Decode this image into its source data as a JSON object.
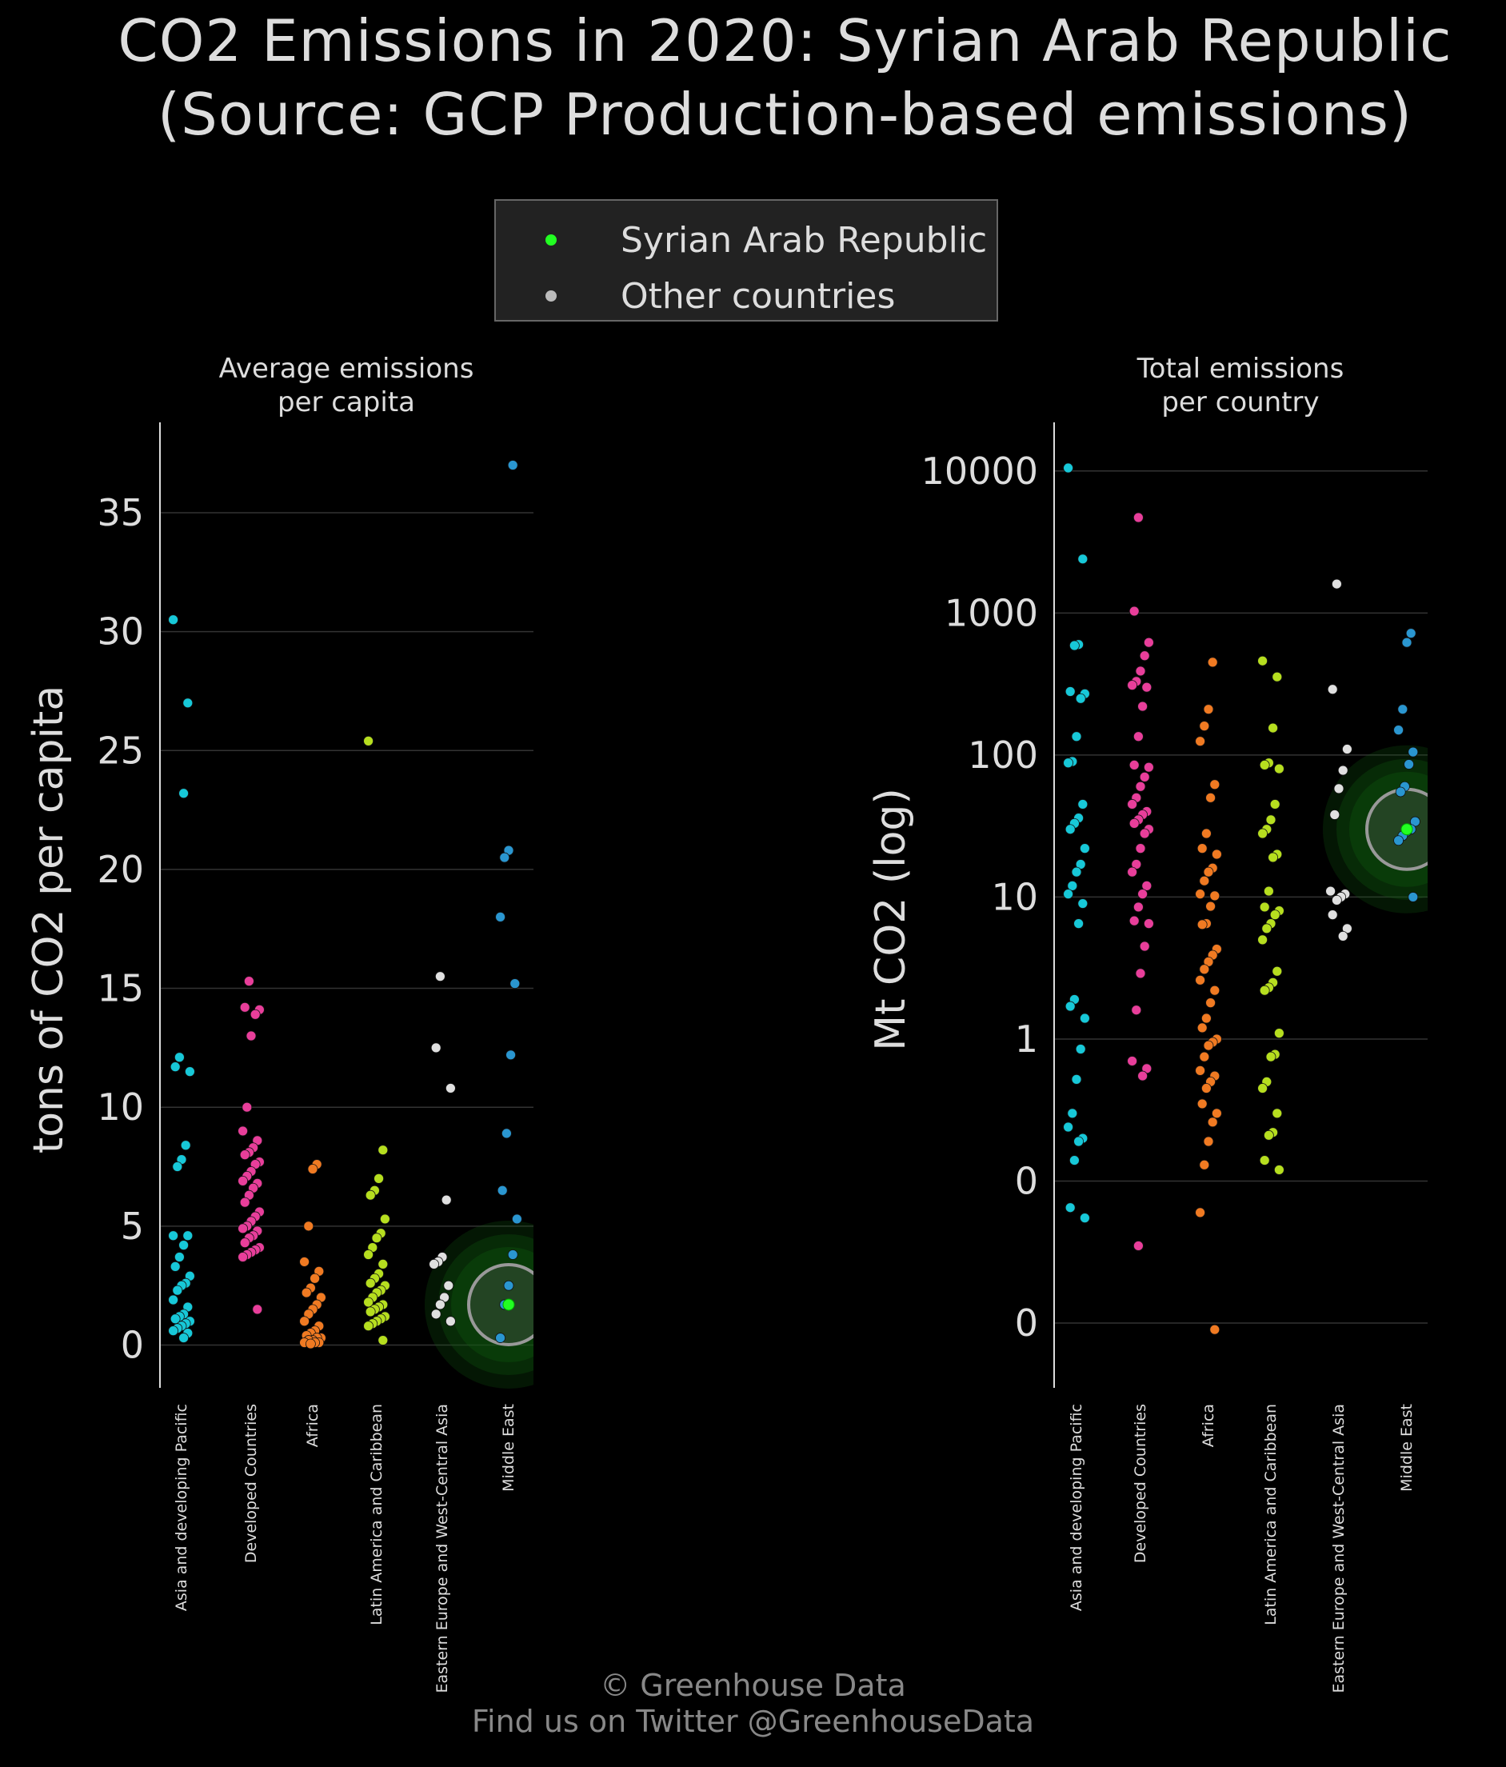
{
  "title_line1": "CO2 Emissions in 2020: Syrian Arab Republic",
  "title_line2": "(Source: GCP Production-based emissions)",
  "legend": [
    {
      "label": "Syrian Arab Republic",
      "color": "#22ff22"
    },
    {
      "label": "Other countries",
      "color": "#bbbbbb"
    }
  ],
  "footer": {
    "line1": "© Greenhouse Data",
    "line2": "Find us on Twitter @GreenhouseData"
  },
  "colors": {
    "Asia and developing Pacific": "#17c8d8",
    "Developed Countries": "#e83e9a",
    "Africa": "#f07a22",
    "Latin America and Caribbean": "#b6de1f",
    "Eastern Europe and West-Central Asia": "#e0e0e0",
    "Middle East": "#2a96d0",
    "highlight": "#22ff22"
  },
  "chart_data": [
    {
      "type": "scatter",
      "subtitle_line1": "Average emissions",
      "subtitle_line2": "per capita",
      "ylabel": "tons of CO2 per capita",
      "ylim": [
        -1.8,
        38.8
      ],
      "yticks": [
        0,
        5,
        10,
        15,
        20,
        25,
        30,
        35
      ],
      "ytick_labels": [
        "0",
        "5",
        "10",
        "15",
        "20",
        "25",
        "30",
        "35"
      ],
      "grid": true,
      "categories": [
        "Asia and developing Pacific",
        "Developed Countries",
        "Africa",
        "Latin America and Caribbean",
        "Eastern Europe and West-Central Asia",
        "Middle East"
      ],
      "highlight": {
        "category": "Middle East",
        "value": 1.7,
        "label": "Syrian Arab Republic"
      },
      "series": [
        {
          "name": "Asia and developing Pacific",
          "values": [
            30.5,
            27.0,
            23.2,
            12.1,
            11.7,
            11.5,
            8.4,
            7.8,
            7.5,
            4.6,
            4.6,
            4.2,
            3.7,
            3.3,
            2.9,
            2.6,
            2.5,
            2.3,
            1.9,
            1.6,
            1.3,
            1.2,
            1.1,
            1.0,
            0.9,
            0.8,
            0.7,
            0.6,
            0.5,
            0.3
          ]
        },
        {
          "name": "Developed Countries",
          "values": [
            15.3,
            14.2,
            14.1,
            13.9,
            13.0,
            10.0,
            9.0,
            8.6,
            8.3,
            8.1,
            8.0,
            7.7,
            7.6,
            7.3,
            7.1,
            6.9,
            6.8,
            6.6,
            6.3,
            6.0,
            5.6,
            5.4,
            5.2,
            5.0,
            4.9,
            4.8,
            4.6,
            4.5,
            4.3,
            4.1,
            4.0,
            3.9,
            3.8,
            3.7,
            1.5
          ]
        },
        {
          "name": "Africa",
          "values": [
            7.6,
            7.4,
            5.0,
            3.5,
            3.1,
            2.8,
            2.4,
            2.2,
            2.0,
            1.7,
            1.5,
            1.3,
            1.0,
            0.8,
            0.6,
            0.5,
            0.4,
            0.3,
            0.3,
            0.2,
            0.2,
            0.1,
            0.1,
            0.1,
            0.05
          ]
        },
        {
          "name": "Latin America and Caribbean",
          "values": [
            25.4,
            8.2,
            7.0,
            6.5,
            6.3,
            5.3,
            4.7,
            4.5,
            4.1,
            3.8,
            3.4,
            3.0,
            2.8,
            2.6,
            2.5,
            2.3,
            2.2,
            2.0,
            1.8,
            1.7,
            1.6,
            1.5,
            1.4,
            1.2,
            1.1,
            1.0,
            0.9,
            0.8,
            0.2
          ]
        },
        {
          "name": "Eastern Europe and West-Central Asia",
          "values": [
            15.5,
            12.5,
            10.8,
            6.1,
            3.7,
            3.5,
            3.4,
            2.5,
            2.0,
            1.7,
            1.3,
            1.0
          ]
        },
        {
          "name": "Middle East",
          "values": [
            37.0,
            20.8,
            20.5,
            18.0,
            15.2,
            12.2,
            8.9,
            6.5,
            5.3,
            3.8,
            2.5,
            1.7,
            0.3
          ]
        }
      ]
    },
    {
      "type": "scatter",
      "subtitle_line1": "Total emissions",
      "subtitle_line2": "per country",
      "ylabel": "Mt CO2 (log)",
      "yscale": "log",
      "ylim": [
        0.0035,
        22000
      ],
      "yticks": [
        0.01,
        0.1,
        1,
        10,
        100,
        1000,
        10000
      ],
      "ytick_labels": [
        "0",
        "0",
        "1",
        "10",
        "100",
        "1000",
        "10000"
      ],
      "grid": true,
      "categories": [
        "Asia and developing Pacific",
        "Developed Countries",
        "Africa",
        "Latin America and Caribbean",
        "Eastern Europe and West-Central Asia",
        "Middle East"
      ],
      "highlight": {
        "category": "Middle East",
        "value": 30,
        "label": "Syrian Arab Republic"
      },
      "series": [
        {
          "name": "Asia and developing Pacific",
          "values": [
            10500,
            2400,
            600,
            590,
            280,
            270,
            250,
            135,
            90,
            88,
            45,
            36,
            33,
            30,
            22,
            17,
            15,
            12,
            10.5,
            9,
            6.5,
            1.9,
            1.7,
            1.4,
            0.85,
            0.52,
            0.3,
            0.24,
            0.2,
            0.19,
            0.14,
            0.065,
            0.055
          ]
        },
        {
          "name": "Developed Countries",
          "values": [
            4700,
            1030,
            620,
            500,
            390,
            330,
            310,
            300,
            220,
            135,
            85,
            82,
            70,
            60,
            50,
            45,
            40,
            38,
            35,
            33,
            30,
            28,
            22,
            17,
            15,
            12,
            10.5,
            8.5,
            6.8,
            6.5,
            4.5,
            2.9,
            1.6,
            0.7,
            0.62,
            0.55,
            0.035
          ]
        },
        {
          "name": "Africa",
          "values": [
            450,
            210,
            160,
            125,
            62,
            50,
            28,
            22,
            20,
            16,
            15,
            13,
            10.5,
            10.2,
            8.6,
            6.5,
            6.4,
            4.3,
            3.9,
            3.5,
            3.1,
            2.6,
            2.2,
            1.8,
            1.4,
            1.2,
            1.0,
            0.95,
            0.9,
            0.75,
            0.6,
            0.55,
            0.5,
            0.45,
            0.35,
            0.3,
            0.26,
            0.19,
            0.13,
            0.06,
            0.009
          ]
        },
        {
          "name": "Latin America and Caribbean",
          "values": [
            460,
            355,
            155,
            88,
            85,
            80,
            45,
            35,
            30,
            28,
            20,
            19,
            11,
            8.5,
            8,
            7.5,
            6.5,
            6,
            5,
            3,
            2.5,
            2.3,
            2.2,
            1.1,
            0.78,
            0.75,
            0.5,
            0.45,
            0.3,
            0.22,
            0.21,
            0.14,
            0.12
          ]
        },
        {
          "name": "Eastern Europe and West-Central Asia",
          "values": [
            1600,
            290,
            110,
            78,
            58,
            38,
            11,
            10.5,
            10,
            9.5,
            7.5,
            6,
            5.3
          ]
        },
        {
          "name": "Middle East",
          "values": [
            720,
            620,
            210,
            150,
            105,
            86,
            60,
            55,
            34,
            30,
            29,
            27,
            25,
            10
          ]
        }
      ]
    }
  ]
}
